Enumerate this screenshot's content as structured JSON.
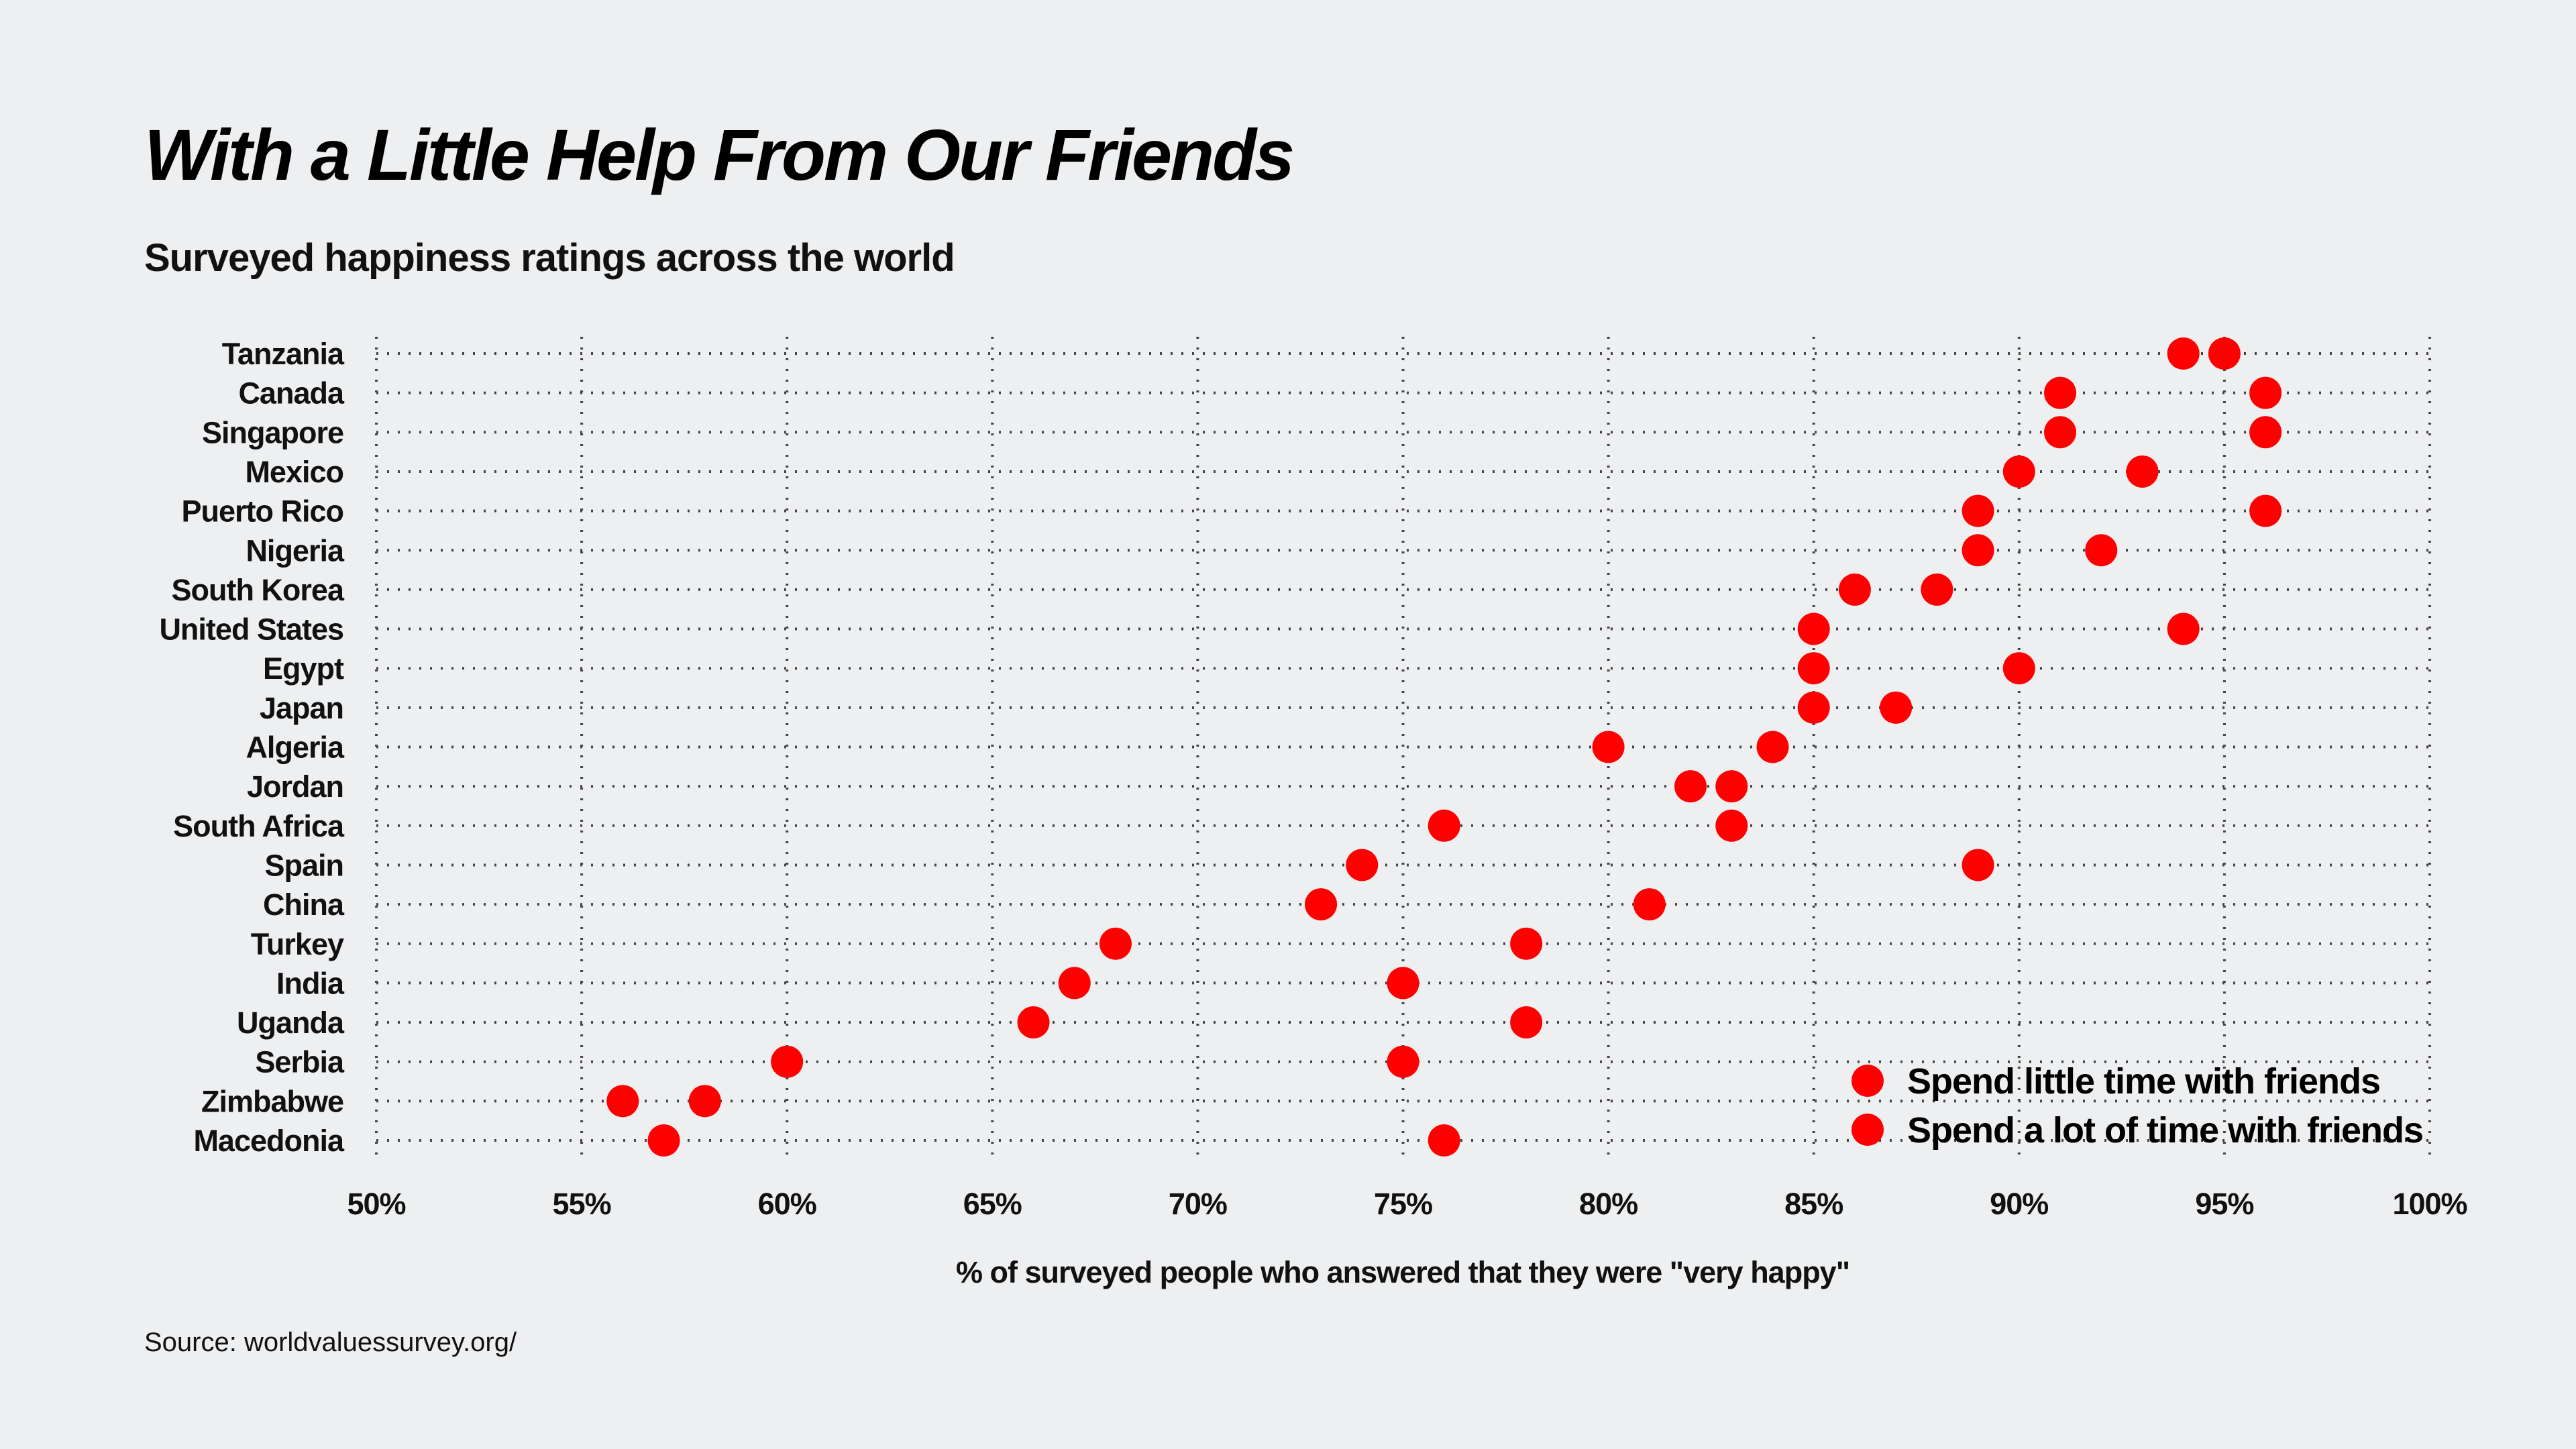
{
  "chart_data": {
    "type": "scatter",
    "subtype": "dot-plot",
    "title": "With a Little Help From Our Friends",
    "subtitle": "Surveyed happiness ratings across the world",
    "xlabel": "% of surveyed people who answered that they were \"very happy\"",
    "ylabel": "",
    "source": "Source: worldvaluessurvey.org/",
    "xlim": [
      50,
      100
    ],
    "xticks": [
      50,
      55,
      60,
      65,
      70,
      75,
      80,
      85,
      90,
      95,
      100
    ],
    "xtick_labels": [
      "50%",
      "55%",
      "60%",
      "65%",
      "70%",
      "75%",
      "80%",
      "85%",
      "90%",
      "95%",
      "100%"
    ],
    "grid": true,
    "legend_placement": "bottom-right",
    "categories": [
      "Tanzania",
      "Canada",
      "Singapore",
      "Mexico",
      "Puerto Rico",
      "Nigeria",
      "South Korea",
      "United States",
      "Egypt",
      "Japan",
      "Algeria",
      "Jordan",
      "South Africa",
      "Spain",
      "China",
      "Turkey",
      "India",
      "Uganda",
      "Serbia",
      "Zimbabwe",
      "Macedonia"
    ],
    "series": [
      {
        "name": "Spend little time with friends",
        "color": "#ff0000",
        "values": [
          94,
          91,
          91,
          90,
          89,
          89,
          86,
          85,
          85,
          85,
          80,
          82,
          76,
          74,
          73,
          68,
          67,
          66,
          60,
          56,
          57
        ]
      },
      {
        "name": "Spend a lot of time with friends",
        "color": "#ff0000",
        "values": [
          95,
          96,
          96,
          93,
          96,
          92,
          88,
          94,
          90,
          87,
          84,
          83,
          83,
          89,
          81,
          78,
          75,
          78,
          75,
          58,
          76
        ]
      }
    ]
  }
}
